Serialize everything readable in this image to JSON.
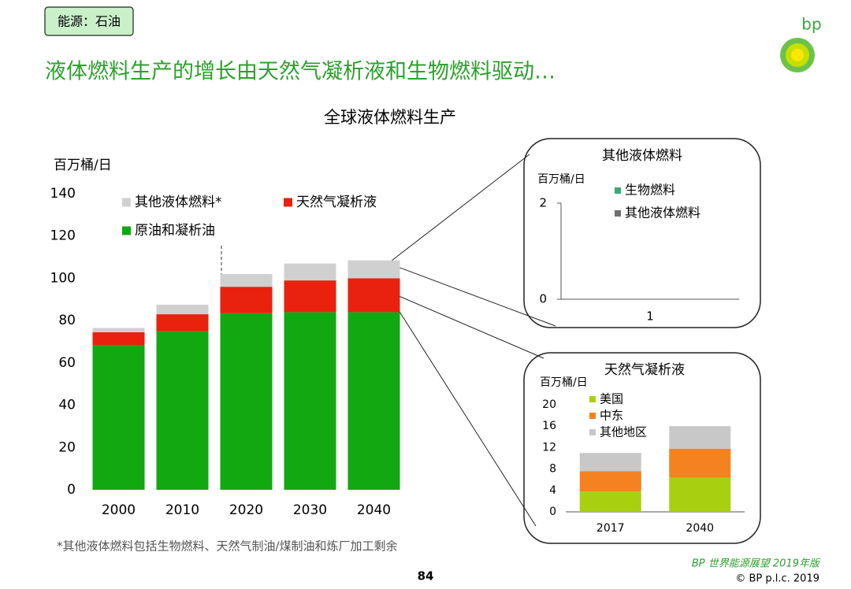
{
  "header": {
    "tag": "能源：石油",
    "title": "液体燃料生产的增长由天然气凝析液和生物燃料驱动…",
    "logo": "bp"
  },
  "chart_data": [
    {
      "type": "bar",
      "stacked": true,
      "title": "全球液体燃料生产",
      "y_label": "百万桶/日",
      "categories": [
        "2000",
        "2010",
        "2020",
        "2030",
        "2040"
      ],
      "series": [
        {
          "name": "原油和凝析油",
          "color": "#12a812",
          "values": [
            68.5,
            75,
            83.5,
            84,
            84
          ]
        },
        {
          "name": "天然气凝析液",
          "color": "#e8220e",
          "values": [
            6,
            8,
            12.5,
            15,
            16
          ]
        },
        {
          "name": "其他液体燃料*",
          "color": "#d0d0d0",
          "values": [
            2,
            4.5,
            6,
            8,
            8.5
          ]
        }
      ],
      "ylim": [
        0,
        140
      ],
      "yticks": [
        0,
        20,
        40,
        60,
        80,
        100,
        120,
        140
      ]
    },
    {
      "type": "bar",
      "stacked": true,
      "title": "其他液体燃料",
      "y_label": "百万桶/日",
      "categories": [
        "1"
      ],
      "series": [
        {
          "name": "生物燃料",
          "color": "#3aa87a",
          "values": [
            null
          ]
        },
        {
          "name": "其他液体燃料",
          "color": "#707070",
          "values": [
            null
          ]
        }
      ],
      "ylim": [
        0,
        2
      ],
      "yticks": [
        0,
        2
      ]
    },
    {
      "type": "bar",
      "stacked": true,
      "title": "天然气凝析液",
      "y_label": "百万桶/日",
      "categories": [
        "2017",
        "2040"
      ],
      "series": [
        {
          "name": "美国",
          "color": "#a8d010",
          "values": [
            3.8,
            6.4
          ]
        },
        {
          "name": "中东",
          "color": "#f58220",
          "values": [
            3.8,
            5.4
          ]
        },
        {
          "name": "其他地区",
          "color": "#c8c8c8",
          "values": [
            3.4,
            4.2
          ]
        }
      ],
      "ylim": [
        0,
        20
      ],
      "yticks": [
        0,
        4,
        8,
        12,
        16,
        20
      ]
    }
  ],
  "footnote": "*其他液体燃料包括生物燃料、天然气制油/煤制油和炼厂加工剩余",
  "page_number": "84",
  "footer": {
    "publication": "BP 世界能源展望 2019年版",
    "copyright": "© BP p.l.c. 2019"
  }
}
